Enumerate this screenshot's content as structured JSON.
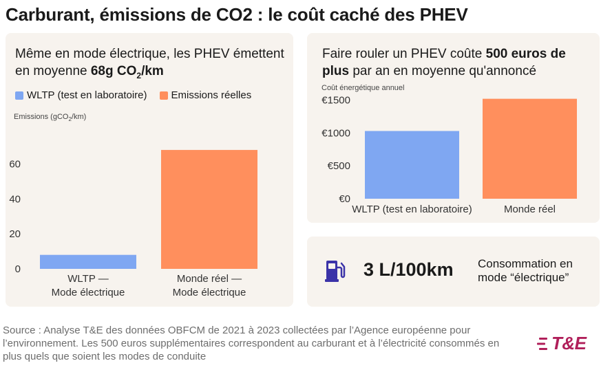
{
  "title": "Carburant, émissions de CO2 : le coût caché des PHEV",
  "colors": {
    "wltp": "#7fa7f2",
    "real": "#ff8f5d",
    "panel_bg": "#f7f3ee",
    "logo": "#b01f5a",
    "icon": "#3b33a8"
  },
  "left_panel": {
    "title_regular": "Même en mode électrique, les PHEV émettent en moyenne ",
    "title_bold": "68g CO",
    "title_sub": "2",
    "title_suffix": "/km",
    "legend": [
      {
        "label": "WLTP (test en laboratoire)",
        "color": "#7fa7f2"
      },
      {
        "label": "Emissions réelles",
        "color": "#ff8f5d"
      }
    ],
    "axis_caption_pre": "Emissions (gCO",
    "axis_caption_sub": "2",
    "axis_caption_post": "/km)"
  },
  "right_panel": {
    "title_part1": "Faire rouler un PHEV coûte ",
    "title_bold": "500 euros de plus",
    "title_part2": " par an en moyenne qu'annoncé",
    "axis_caption": "Coût énergétique annuel"
  },
  "stat_panel": {
    "icon": "fuel-pump-icon",
    "value": "3 L/100km",
    "description": "Consommation en mode “électrique”"
  },
  "source": "Source : Analyse T&E des données OBFCM de 2021 à 2023 collectées par l’Agence européenne pour l’environnement. Les 500 euros supplémentaires correspondent au carburant et à l’électricité consommés en plus quels que soient les modes de conduite",
  "logo": "T&E",
  "chart_data": [
    {
      "type": "bar",
      "categories": [
        [
          "WLTP —",
          "Mode électrique"
        ],
        [
          "Monde réel —",
          "Mode électrique"
        ]
      ],
      "values": [
        8,
        68
      ],
      "colors": [
        "#7fa7f2",
        "#ff8f5d"
      ],
      "ylabel": "Emissions (gCO2/km)",
      "ylim": [
        0,
        70
      ],
      "yticks": [
        0,
        20,
        40,
        60
      ],
      "ytick_labels": [
        "0",
        "20",
        "40",
        "60"
      ],
      "grid": false
    },
    {
      "type": "bar",
      "categories": [
        [
          "WLTP (test en laboratoire)"
        ],
        [
          "Monde réel"
        ]
      ],
      "values": [
        1030,
        1520
      ],
      "colors": [
        "#7fa7f2",
        "#ff8f5d"
      ],
      "ylabel": "Coût énergétique annuel",
      "ylim": [
        0,
        1600
      ],
      "yticks": [
        0,
        500,
        1000,
        1500
      ],
      "ytick_labels": [
        "€0",
        "€500",
        "€1000",
        "€1500"
      ],
      "grid": false
    }
  ]
}
